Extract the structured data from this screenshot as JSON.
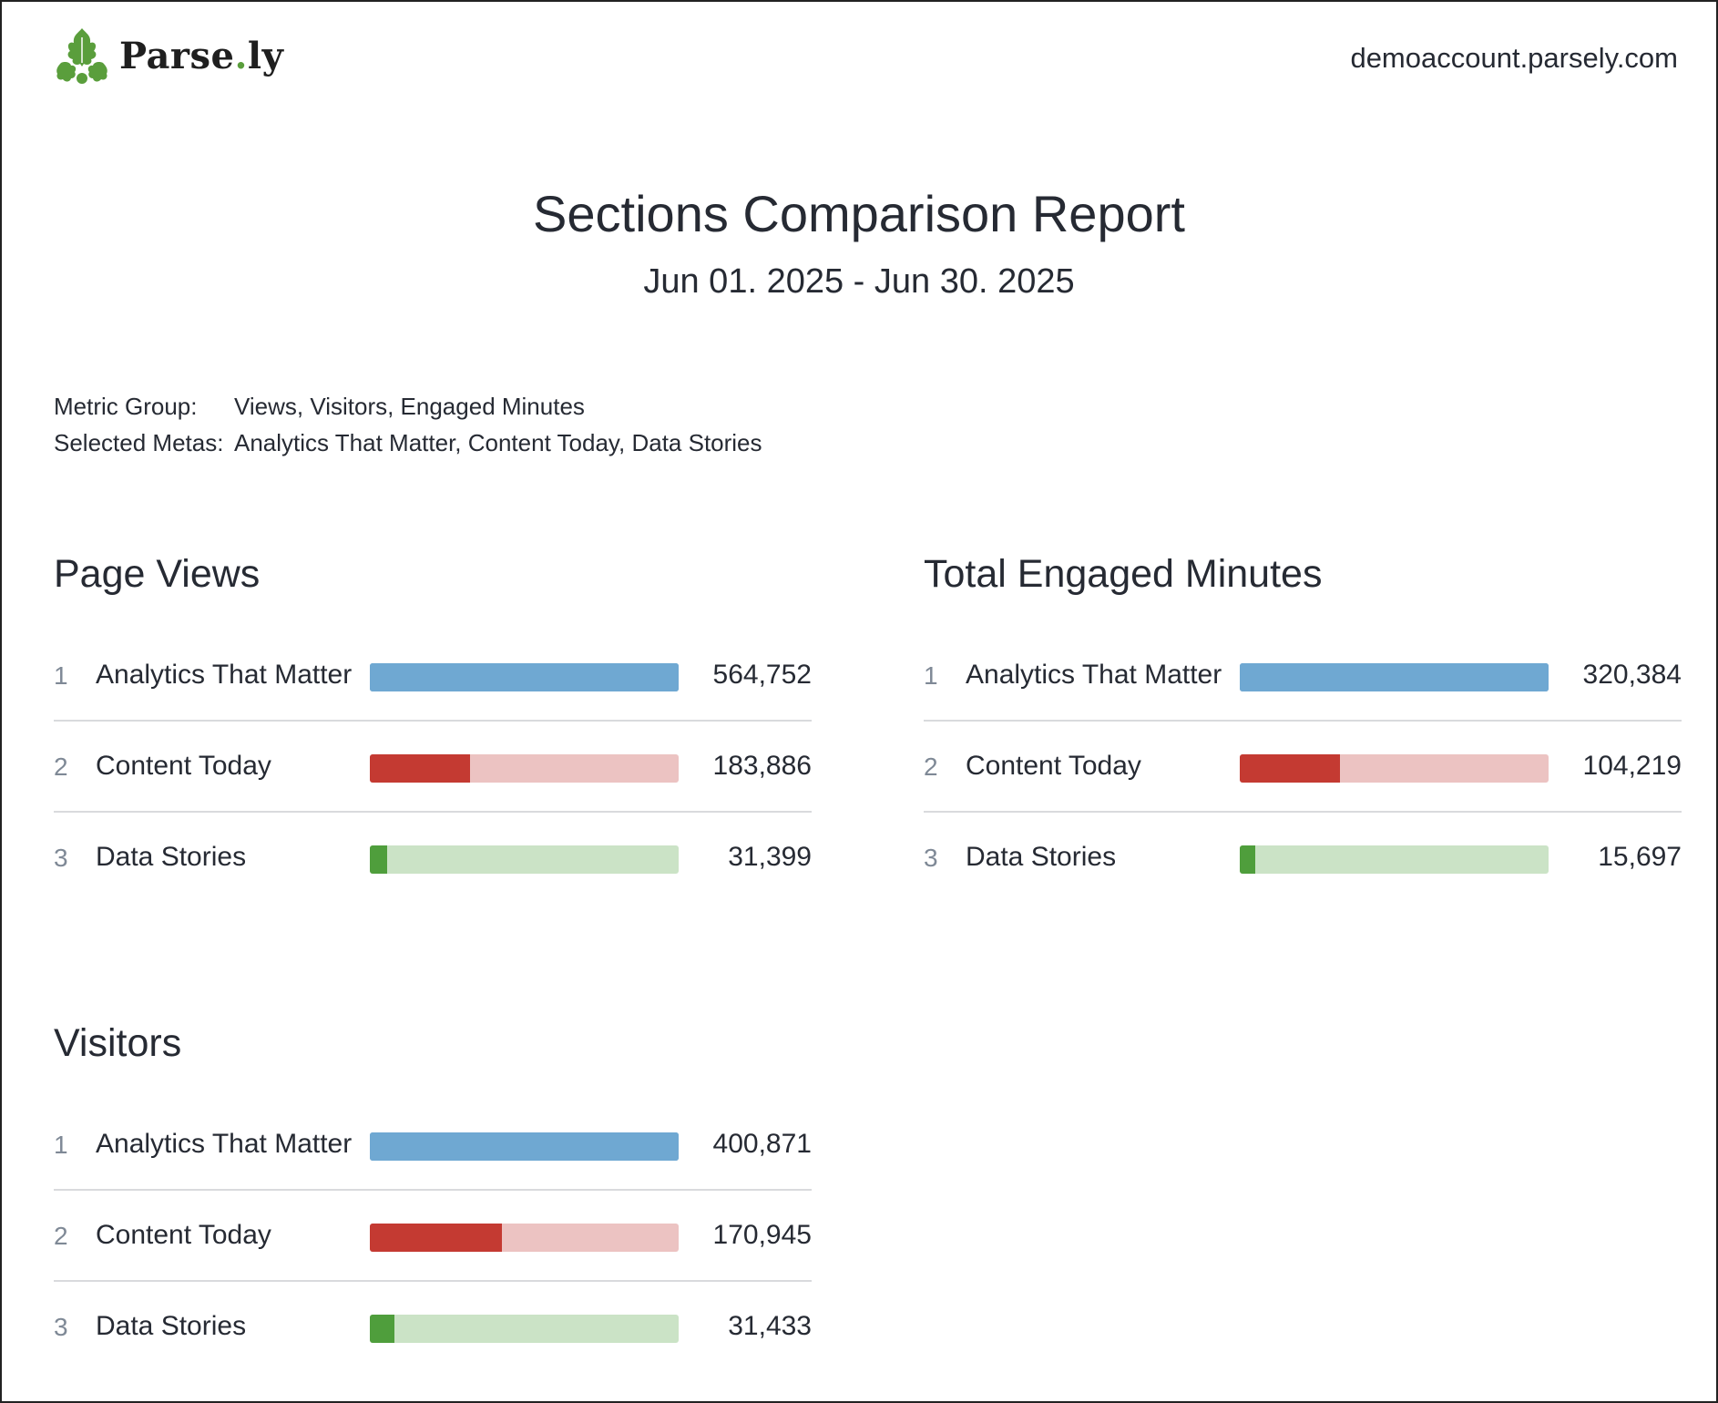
{
  "header": {
    "brand_name": "Parse",
    "brand_dot": ".",
    "brand_suffix": "ly",
    "logo_icon": "parsley-leaf-icon",
    "domain": "demoaccount.parsely.com"
  },
  "report": {
    "title": "Sections Comparison Report",
    "date_range": "Jun 01. 2025 - Jun 30. 2025"
  },
  "meta": {
    "metric_group_label": "Metric Group:",
    "metric_group_value": "Views, Visitors, Engaged Minutes",
    "selected_metas_label": "Selected Metas:",
    "selected_metas_value": "Analytics That Matter, Content Today, Data Stories"
  },
  "colors": {
    "brand_green": "#5a9e3c",
    "series_1_fill": "#6fa8d2",
    "series_1_track": "#6fa8d2",
    "series_2_fill": "#c43a32",
    "series_2_track": "#ecc3c2",
    "series_3_fill": "#4f9e3c",
    "series_3_track": "#cbe3c6"
  },
  "sections": [
    {
      "title": "Page Views",
      "rows": [
        {
          "rank": "1",
          "label": "Analytics That Matter",
          "value": "564,752",
          "share": 1.0
        },
        {
          "rank": "2",
          "label": "Content Today",
          "value": "183,886",
          "share": 0.3256
        },
        {
          "rank": "3",
          "label": "Data Stories",
          "value": "31,399",
          "share": 0.0556
        }
      ]
    },
    {
      "title": "Total Engaged Minutes",
      "rows": [
        {
          "rank": "1",
          "label": "Analytics That Matter",
          "value": "320,384",
          "share": 1.0
        },
        {
          "rank": "2",
          "label": "Content Today",
          "value": "104,219",
          "share": 0.3253
        },
        {
          "rank": "3",
          "label": "Data Stories",
          "value": "15,697",
          "share": 0.049
        }
      ]
    },
    {
      "title": "Visitors",
      "rows": [
        {
          "rank": "1",
          "label": "Analytics That Matter",
          "value": "400,871",
          "share": 1.0
        },
        {
          "rank": "2",
          "label": "Content Today",
          "value": "170,945",
          "share": 0.4264
        },
        {
          "rank": "3",
          "label": "Data Stories",
          "value": "31,433",
          "share": 0.0784
        }
      ]
    }
  ]
}
